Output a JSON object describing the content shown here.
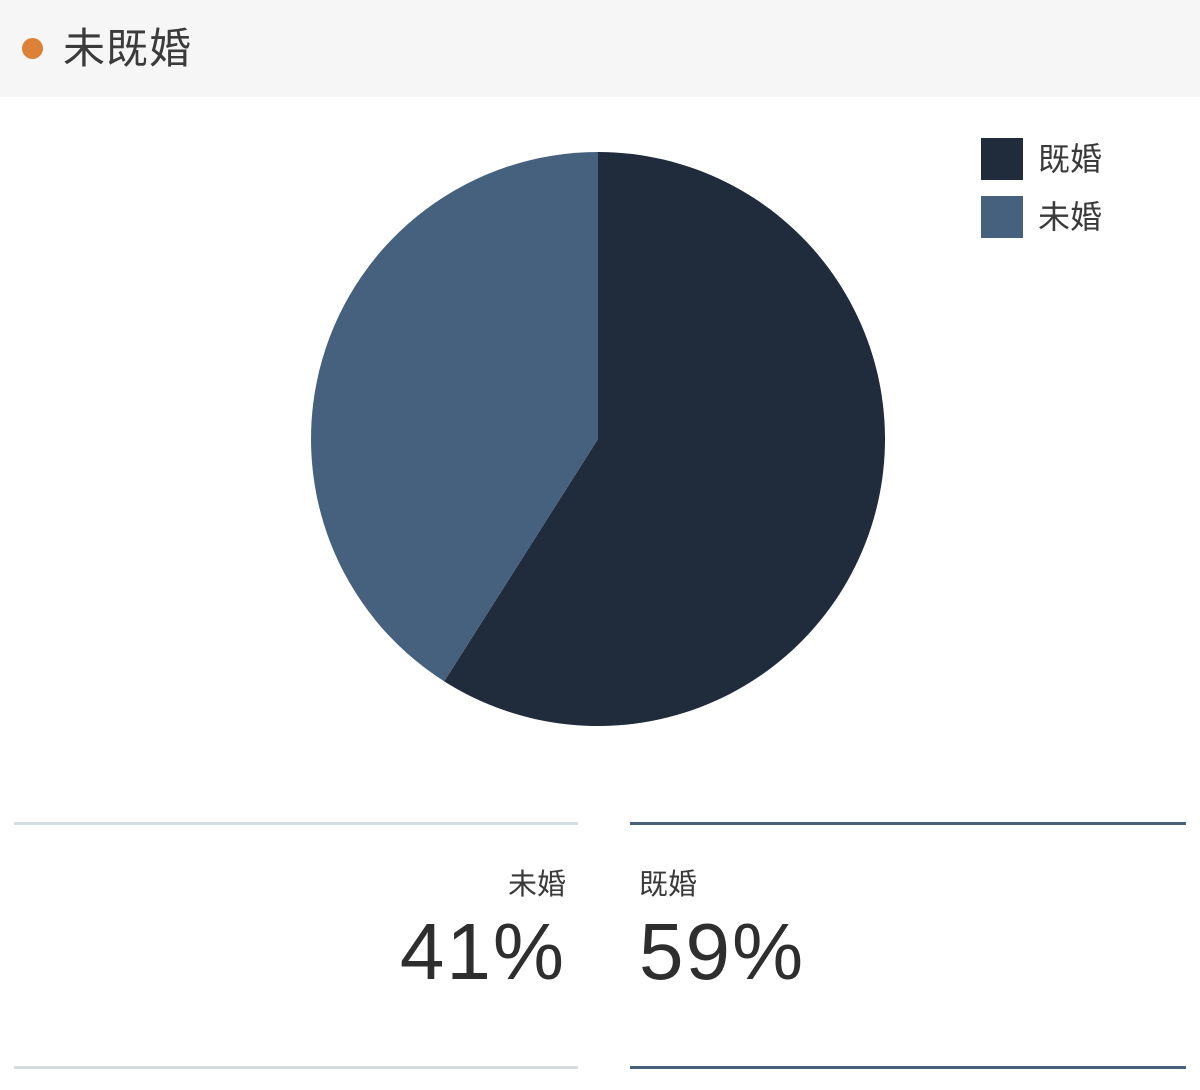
{
  "header": {
    "title": "未既婚",
    "bullet_color": "#dd8137",
    "background_color": "#f6f6f6"
  },
  "chart_data": {
    "type": "pie",
    "title": "未既婚",
    "unit": "%",
    "start_angle_deg": 0,
    "direction": "clockwise",
    "legend_position": "top-right",
    "slices": [
      {
        "label": "既婚",
        "value": 59,
        "color": "#202c3c"
      },
      {
        "label": "未婚",
        "value": 41,
        "color": "#46617e"
      }
    ]
  },
  "stats": [
    {
      "label": "未婚",
      "value": "41%",
      "accent_color": "#d5dde3"
    },
    {
      "label": "既婚",
      "value": "59%",
      "accent_color": "#47617b"
    }
  ]
}
